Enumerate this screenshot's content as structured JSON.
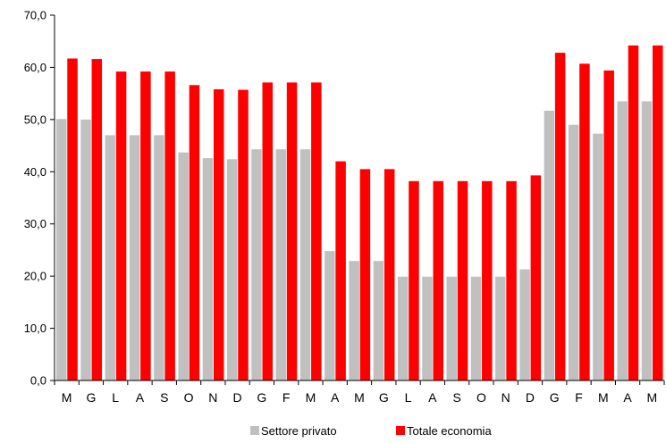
{
  "chart_data": {
    "type": "bar",
    "categories": [
      "M",
      "G",
      "L",
      "A",
      "S",
      "O",
      "N",
      "D",
      "G",
      "F",
      "M",
      "A",
      "M",
      "G",
      "L",
      "A",
      "S",
      "O",
      "N",
      "D",
      "G",
      "F",
      "M",
      "A",
      "M"
    ],
    "series": [
      {
        "name": "Settore privato",
        "color": "#c0c0c0",
        "values": [
          50.1,
          50.0,
          47.0,
          47.0,
          47.0,
          43.7,
          42.6,
          42.4,
          44.3,
          44.3,
          44.3,
          24.8,
          22.9,
          22.9,
          19.9,
          19.9,
          19.9,
          19.9,
          19.9,
          21.3,
          51.7,
          49.0,
          47.3,
          53.5,
          53.5
        ]
      },
      {
        "name": "Totale economia",
        "color": "#ff0000",
        "values": [
          61.7,
          61.6,
          59.2,
          59.2,
          59.2,
          56.6,
          55.8,
          55.7,
          57.1,
          57.1,
          57.1,
          42.0,
          40.5,
          40.5,
          38.2,
          38.2,
          38.2,
          38.2,
          38.2,
          39.3,
          62.8,
          60.7,
          59.4,
          64.2,
          64.2
        ]
      }
    ],
    "yticks": [
      "0,0",
      "10,0",
      "20,0",
      "30,0",
      "40,0",
      "50,0",
      "60,0",
      "70,0"
    ],
    "ylim": [
      0,
      70
    ],
    "grid": false,
    "legend_position": "bottom"
  }
}
